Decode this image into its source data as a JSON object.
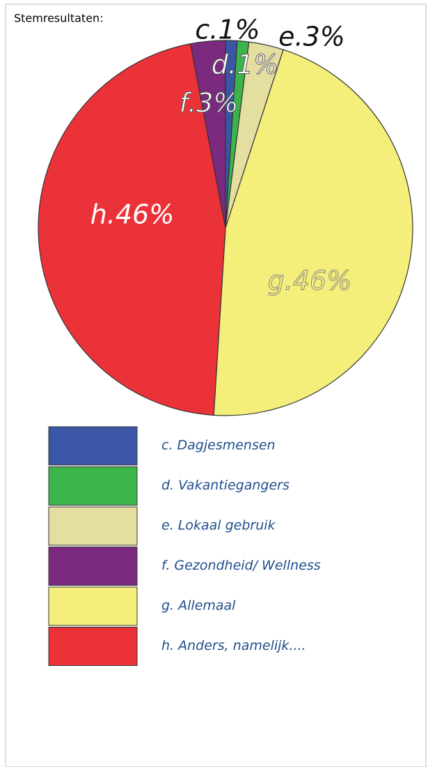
{
  "chart_data": {
    "type": "pie",
    "title": "Stemresultaten:",
    "categories": [
      "c. Dagjesmensen",
      "d. Vakantiegangers",
      "e. Lokaal gebruik",
      "f. Gezondheid/ Wellness",
      "g. Allemaal",
      "h. Anders, namelijk...."
    ],
    "values": [
      1,
      1,
      3,
      3,
      46,
      46
    ],
    "value_labels": [
      "c.1%",
      "d.1%",
      "e.3%",
      "f.3%",
      "g.46%",
      "h.46%"
    ],
    "colors": [
      "#3a56a5",
      "#3bb54a",
      "#e4dea0",
      "#7b2a7f",
      "#f4ee7a",
      "#ec3239"
    ]
  }
}
